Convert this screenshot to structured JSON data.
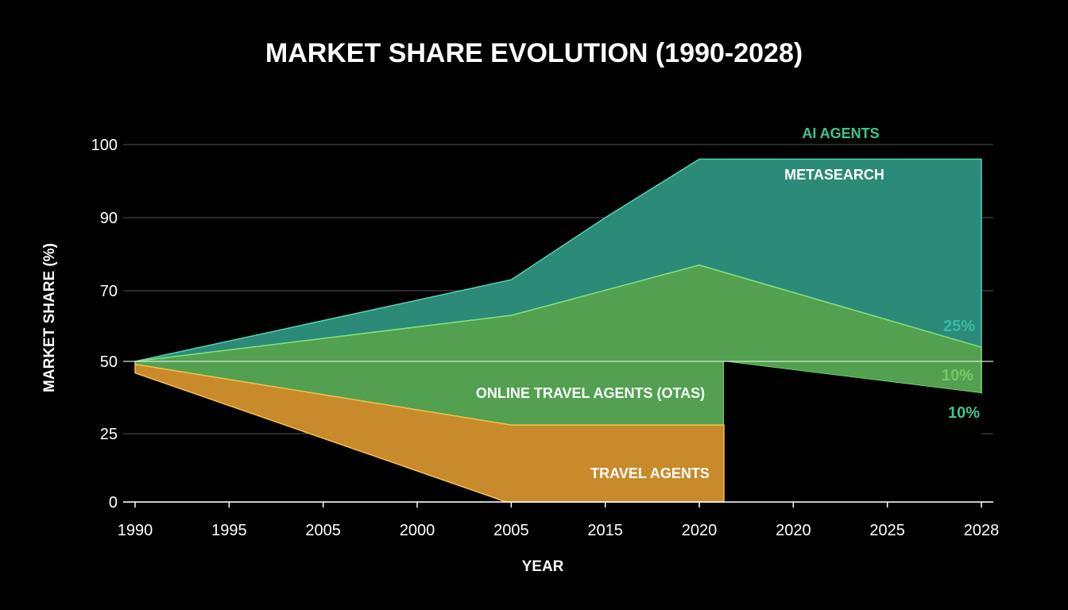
{
  "colors": {
    "background": "#000000",
    "grid": "#555555",
    "text": "#ffffff",
    "metasearch_fill": "#2b8a78",
    "metasearch_line": "#4fd6b4",
    "ota_fill": "#52a050",
    "ota_line": "#86e07a",
    "travel_fill": "#c98a2c",
    "travel_line": "#f2c04a",
    "ai_label": "#3fc48f",
    "teal_label": "#3bb8a5",
    "green_label": "#78c763"
  },
  "chart_data": {
    "type": "area",
    "title": "MARKET SHARE EVOLUTION (1990-2028)",
    "xlabel": "YEAR",
    "ylabel": "MARKET SHARE (%)",
    "x": [
      "1990",
      "1995",
      "2005",
      "2000",
      "2005",
      "2015",
      "2020",
      "2020",
      "2025",
      "2028"
    ],
    "y_ticks": [
      "0",
      "25",
      "50",
      "70",
      "90",
      "100"
    ],
    "grid": true,
    "series": [
      {
        "name": "METASEARCH",
        "upper": [
          {
            "x": "1990",
            "y": 50
          },
          {
            "x": "2005",
            "y": 73
          },
          {
            "x": "2015",
            "y": 90
          },
          {
            "x": "2020",
            "y": 98
          },
          {
            "x": "2028",
            "y": 98
          }
        ],
        "lower": [
          {
            "x": "2028",
            "y": 54
          },
          {
            "x": "2020",
            "y": 77
          },
          {
            "x": "2005",
            "y": 63
          },
          {
            "x": "1990",
            "y": 50
          }
        ]
      },
      {
        "name": "ONLINE TRAVEL AGENTS (OTAS)",
        "upper": [
          {
            "x": "1990",
            "y": 50
          },
          {
            "x": "2005",
            "y": 63
          },
          {
            "x": "2020",
            "y": 77
          },
          {
            "x": "2028",
            "y": 54
          }
        ],
        "lower": [
          {
            "x": "2028",
            "y": 39
          },
          {
            "x": "2020",
            "y": 50
          },
          {
            "x": "2020",
            "y": 28
          },
          {
            "x": "2005",
            "y": 28
          },
          {
            "x": "1990",
            "y": 49
          }
        ]
      },
      {
        "name": "TRAVEL AGENTS",
        "upper": [
          {
            "x": "1990",
            "y": 49
          },
          {
            "x": "2005",
            "y": 28
          },
          {
            "x": "2020",
            "y": 28
          },
          {
            "x": "2020",
            "y": 0
          }
        ],
        "lower": [
          {
            "x": "2005",
            "y": 0
          },
          {
            "x": "1990",
            "y": 46
          }
        ]
      }
    ],
    "labels": {
      "ai_agents": "AI AGENTS",
      "metasearch": "METASEARCH",
      "otas": "ONLINE TRAVEL AGENTS (OTAS)",
      "travel_agents": "TRAVEL AGENTS"
    },
    "annotations": [
      "25%",
      "10%",
      "10%"
    ]
  }
}
